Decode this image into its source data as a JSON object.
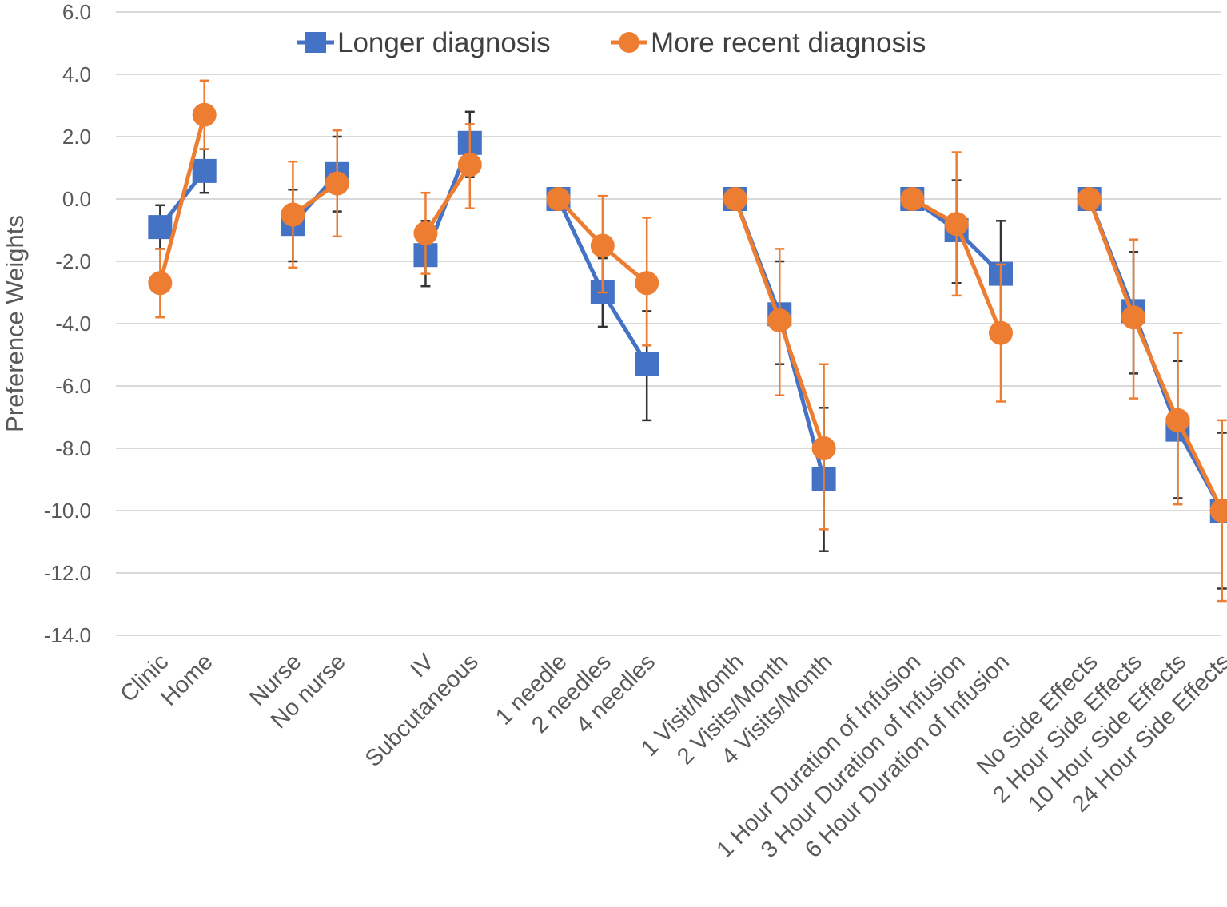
{
  "chart_data": {
    "type": "line",
    "title": "",
    "xlabel": "",
    "ylabel": "Preference Weights",
    "ylim": [
      -14,
      6
    ],
    "yticks": [
      6,
      4,
      2,
      0,
      -2,
      -4,
      -6,
      -8,
      -10,
      -12,
      -14
    ],
    "ytick_labels": [
      "6.0",
      "4.0",
      "2.0",
      "0.0",
      "-2.0",
      "-4.0",
      "-6.0",
      "-8.0",
      "-10.0",
      "-12.0",
      "-14.0"
    ],
    "legend_position": "top",
    "grid": true,
    "groups": [
      {
        "categories": [
          "Clinic",
          "Home"
        ],
        "series": [
          {
            "name": "Longer diagnosis",
            "values": [
              -0.9,
              0.9
            ],
            "err_low": [
              -1.6,
              0.2
            ],
            "err_high": [
              -0.2,
              1.6
            ]
          },
          {
            "name": "More recent diagnosis",
            "values": [
              -2.7,
              2.7
            ],
            "err_low": [
              -3.8,
              1.6
            ],
            "err_high": [
              -1.6,
              3.8
            ]
          }
        ]
      },
      {
        "categories": [
          "Nurse",
          "No nurse"
        ],
        "series": [
          {
            "name": "Longer diagnosis",
            "values": [
              -0.8,
              0.8
            ],
            "err_low": [
              -2.0,
              -0.4
            ],
            "err_high": [
              0.3,
              2.0
            ]
          },
          {
            "name": "More recent diagnosis",
            "values": [
              -0.5,
              0.5
            ],
            "err_low": [
              -2.2,
              -1.2
            ],
            "err_high": [
              1.2,
              2.2
            ]
          }
        ]
      },
      {
        "categories": [
          "IV",
          "Subcutaneous"
        ],
        "series": [
          {
            "name": "Longer diagnosis",
            "values": [
              -1.8,
              1.8
            ],
            "err_low": [
              -2.8,
              0.7
            ],
            "err_high": [
              -0.7,
              2.8
            ]
          },
          {
            "name": "More recent diagnosis",
            "values": [
              -1.1,
              1.1
            ],
            "err_low": [
              -2.4,
              -0.3
            ],
            "err_high": [
              0.2,
              2.4
            ]
          }
        ]
      },
      {
        "categories": [
          "1 needle",
          "2 needles",
          "4 needles"
        ],
        "series": [
          {
            "name": "Longer diagnosis",
            "values": [
              0.0,
              -3.0,
              -5.3
            ],
            "err_low": [
              0.0,
              -4.1,
              -7.1
            ],
            "err_high": [
              0.0,
              -1.9,
              -3.6
            ]
          },
          {
            "name": "More recent diagnosis",
            "values": [
              0.0,
              -1.5,
              -2.7
            ],
            "err_low": [
              0.0,
              -3.0,
              -4.7
            ],
            "err_high": [
              0.0,
              0.1,
              -0.6
            ]
          }
        ]
      },
      {
        "categories": [
          "1 Visit/Month",
          "2 Visits/Month",
          "4 Visits/Month"
        ],
        "series": [
          {
            "name": "Longer diagnosis",
            "values": [
              0.0,
              -3.7,
              -9.0
            ],
            "err_low": [
              0.0,
              -5.3,
              -11.3
            ],
            "err_high": [
              0.0,
              -2.0,
              -6.7
            ]
          },
          {
            "name": "More recent diagnosis",
            "values": [
              0.0,
              -3.9,
              -8.0
            ],
            "err_low": [
              0.0,
              -6.3,
              -10.6
            ],
            "err_high": [
              0.0,
              -1.6,
              -5.3
            ]
          }
        ]
      },
      {
        "categories": [
          "1 Hour Duration of Infusion",
          "3 Hour Duration of Infusion",
          "6 Hour Duration of Infusion"
        ],
        "series": [
          {
            "name": "Longer diagnosis",
            "values": [
              0.0,
              -1.0,
              -2.4
            ],
            "err_low": [
              0.0,
              -2.7,
              -4.1
            ],
            "err_high": [
              0.0,
              0.6,
              -0.7
            ]
          },
          {
            "name": "More recent diagnosis",
            "values": [
              0.0,
              -0.8,
              -4.3
            ],
            "err_low": [
              0.0,
              -3.1,
              -6.5
            ],
            "err_high": [
              0.0,
              1.5,
              -2.1
            ]
          }
        ]
      },
      {
        "categories": [
          "No Side Effects",
          "2 Hour Side Effects",
          "10 Hour Side Effects",
          "24 Hour Side Effects"
        ],
        "series": [
          {
            "name": "Longer diagnosis",
            "values": [
              0.0,
              -3.6,
              -7.4,
              -10.0
            ],
            "err_low": [
              0.0,
              -5.6,
              -9.6,
              -12.5
            ],
            "err_high": [
              0.0,
              -1.7,
              -5.2,
              -7.5
            ]
          },
          {
            "name": "More recent diagnosis",
            "values": [
              0.0,
              -3.8,
              -7.1,
              -10.0
            ],
            "err_low": [
              0.0,
              -6.4,
              -9.8,
              -12.9
            ],
            "err_high": [
              0.0,
              -1.3,
              -4.3,
              -7.1
            ]
          }
        ]
      }
    ],
    "legend": [
      {
        "name": "Longer diagnosis",
        "color": "#4472c4",
        "marker": "square"
      },
      {
        "name": "More recent diagnosis",
        "color": "#ed7d31",
        "marker": "circle"
      }
    ],
    "colors": {
      "Longer diagnosis": "#4472c4",
      "More recent diagnosis": "#ed7d31",
      "Longer diagnosis error bar": "#333333"
    }
  }
}
